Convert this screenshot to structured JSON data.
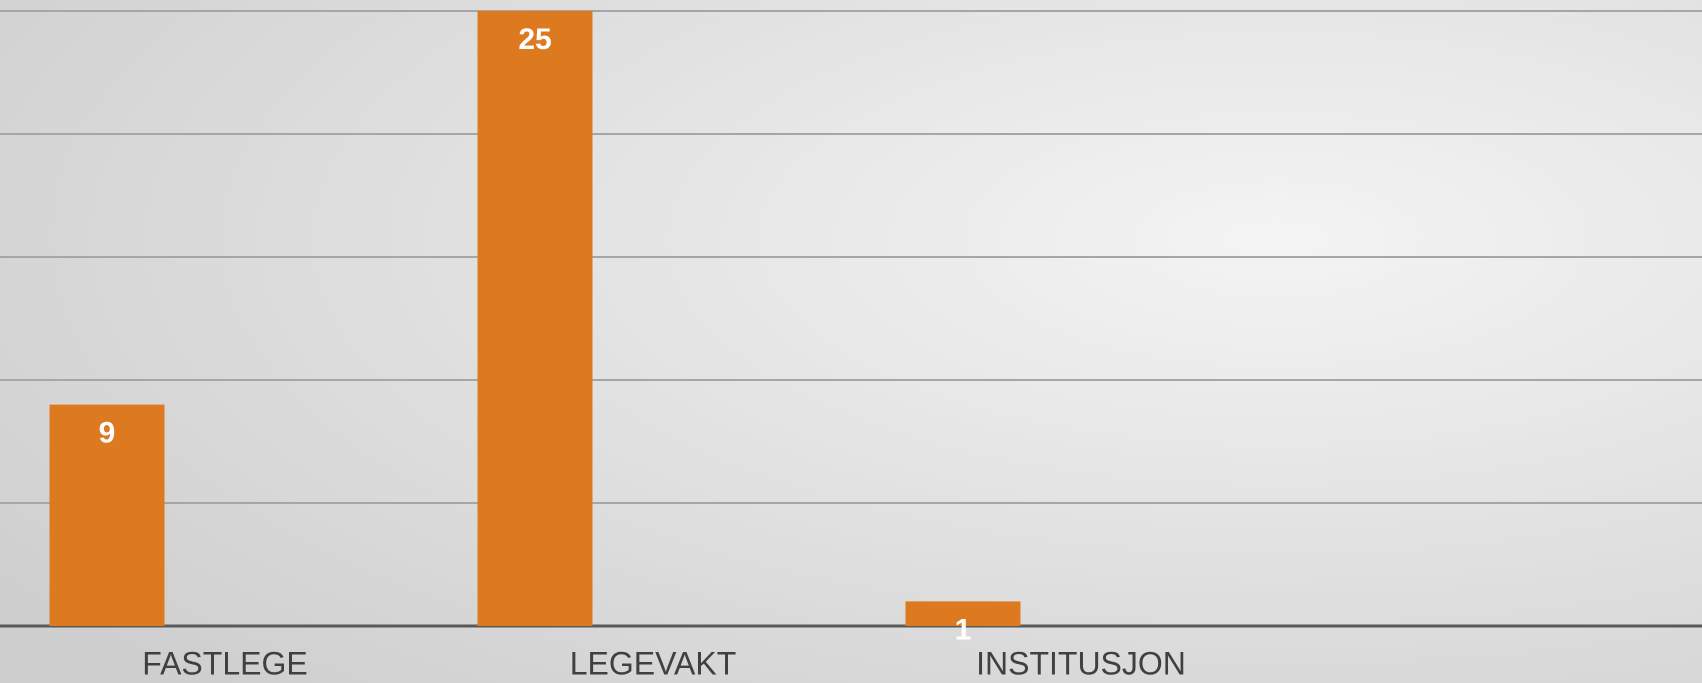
{
  "chart_data": {
    "type": "bar",
    "categories": [
      "FASTLEGE",
      "LEGEVAKT",
      "INSTITUSJON"
    ],
    "values": [
      9,
      25,
      1
    ],
    "color": "#dd7a1f",
    "ylim": [
      0,
      25
    ],
    "yticks": [
      0,
      5,
      10,
      15,
      20,
      25
    ],
    "grid": true
  }
}
